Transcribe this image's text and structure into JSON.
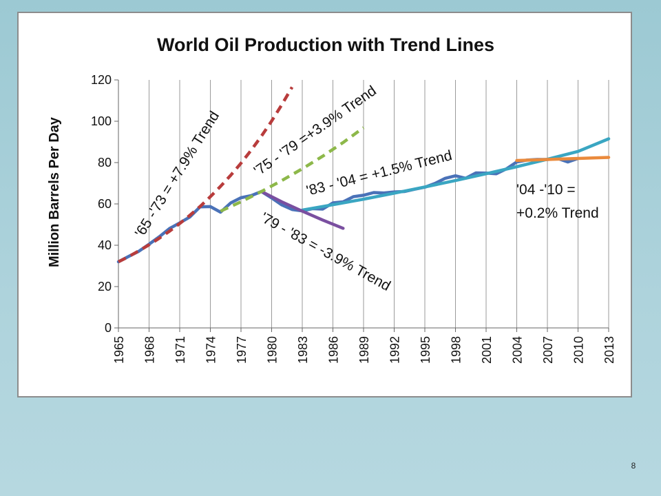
{
  "slide": {
    "page_number": "8"
  },
  "chart_data": {
    "type": "line",
    "title": "World Oil Production with Trend Lines",
    "xlabel": "",
    "ylabel": "Million Barrels Per Day",
    "xlim": [
      1965,
      2013
    ],
    "ylim": [
      0,
      120
    ],
    "y_ticks": [
      0,
      20,
      40,
      60,
      80,
      100,
      120
    ],
    "x_tick_labels": [
      "1965",
      "1968",
      "1971",
      "1974",
      "1977",
      "1980",
      "1983",
      "1986",
      "1989",
      "1992",
      "1995",
      "1998",
      "2001",
      "2004",
      "2007",
      "2010",
      "2013"
    ],
    "grid": "vertical-lines",
    "legend": "none",
    "colors": {
      "production": "#4a72b8",
      "trend_65_73": "#b83c3c",
      "trend_75_79": "#8db84a",
      "trend_79_83": "#7a4fa0",
      "trend_83_04": "#3aa6c2",
      "trend_04_10": "#ea8a3c"
    },
    "series": [
      {
        "key": "production",
        "style": "solid",
        "x": [
          1965,
          1966,
          1967,
          1968,
          1969,
          1970,
          1971,
          1972,
          1973,
          1974,
          1975,
          1976,
          1977,
          1978,
          1979,
          1980,
          1981,
          1982,
          1983,
          1984,
          1985,
          1986,
          1987,
          1988,
          1989,
          1990,
          1991,
          1992,
          1993,
          1994,
          1995,
          1996,
          1997,
          1998,
          1999,
          2000,
          2001,
          2002,
          2003,
          2004,
          2005,
          2006,
          2007,
          2008,
          2009,
          2010
        ],
        "values": [
          32.0,
          34.6,
          37.1,
          40.5,
          44.1,
          48.1,
          50.8,
          53.7,
          58.6,
          58.7,
          56.0,
          60.5,
          63.0,
          64.0,
          66.0,
          62.9,
          59.5,
          57.3,
          56.6,
          57.7,
          57.5,
          60.5,
          61.0,
          63.5,
          64.2,
          65.5,
          65.3,
          65.8,
          66.0,
          67.1,
          68.1,
          69.9,
          72.4,
          73.6,
          72.4,
          75.0,
          74.9,
          74.6,
          77.0,
          80.3,
          81.2,
          81.5,
          81.5,
          82.0,
          80.3,
          82.0
        ]
      },
      {
        "key": "trend_65_73",
        "style": "dashed",
        "x": [
          1965,
          1966,
          1967,
          1968,
          1969,
          1970,
          1971,
          1972,
          1973,
          1974,
          1975,
          1976,
          1977,
          1978,
          1979,
          1980,
          1981,
          1982
        ],
        "values": [
          32.0,
          34.5,
          37.3,
          40.2,
          43.4,
          46.8,
          50.5,
          54.5,
          58.8,
          63.5,
          68.5,
          73.9,
          79.7,
          86.0,
          92.8,
          100.1,
          108.0,
          116.5
        ]
      },
      {
        "key": "trend_75_79",
        "style": "dashed",
        "x": [
          1975,
          1977,
          1979,
          1981,
          1983,
          1985,
          1987,
          1989
        ],
        "values": [
          56.5,
          61.0,
          66.0,
          71.3,
          77.0,
          83.1,
          89.7,
          96.9
        ]
      },
      {
        "key": "trend_79_83",
        "style": "solid",
        "x": [
          1979,
          1981,
          1983,
          1985,
          1987
        ],
        "values": [
          66.0,
          61.0,
          56.5,
          52.2,
          48.2
        ]
      },
      {
        "key": "trend_83_04",
        "style": "solid",
        "x": [
          1983,
          1986,
          1989,
          1992,
          1995,
          1998,
          2001,
          2004,
          2007,
          2010,
          2013
        ],
        "values": [
          57.0,
          59.6,
          62.3,
          65.2,
          68.2,
          71.3,
          74.6,
          78.0,
          81.6,
          85.4,
          91.5
        ]
      },
      {
        "key": "trend_04_10",
        "style": "solid",
        "x": [
          2004,
          2007,
          2010,
          2013
        ],
        "values": [
          81.0,
          81.5,
          82.0,
          82.5
        ]
      }
    ],
    "annotations": [
      {
        "key": "a6573",
        "text": "'65 -'73  = +7.9% Trend"
      },
      {
        "key": "a7579",
        "text": "'75 - '79 =+3.9% Trend"
      },
      {
        "key": "a8304",
        "text": "'83 - '04 = +1.5% Trend"
      },
      {
        "key": "a7983",
        "text": "'79 - '83 = -3.9% Trend"
      },
      {
        "key": "a0410_line1",
        "text": "'04 -'10 ="
      },
      {
        "key": "a0410_line2",
        "text": "+0.2% Trend"
      }
    ]
  }
}
